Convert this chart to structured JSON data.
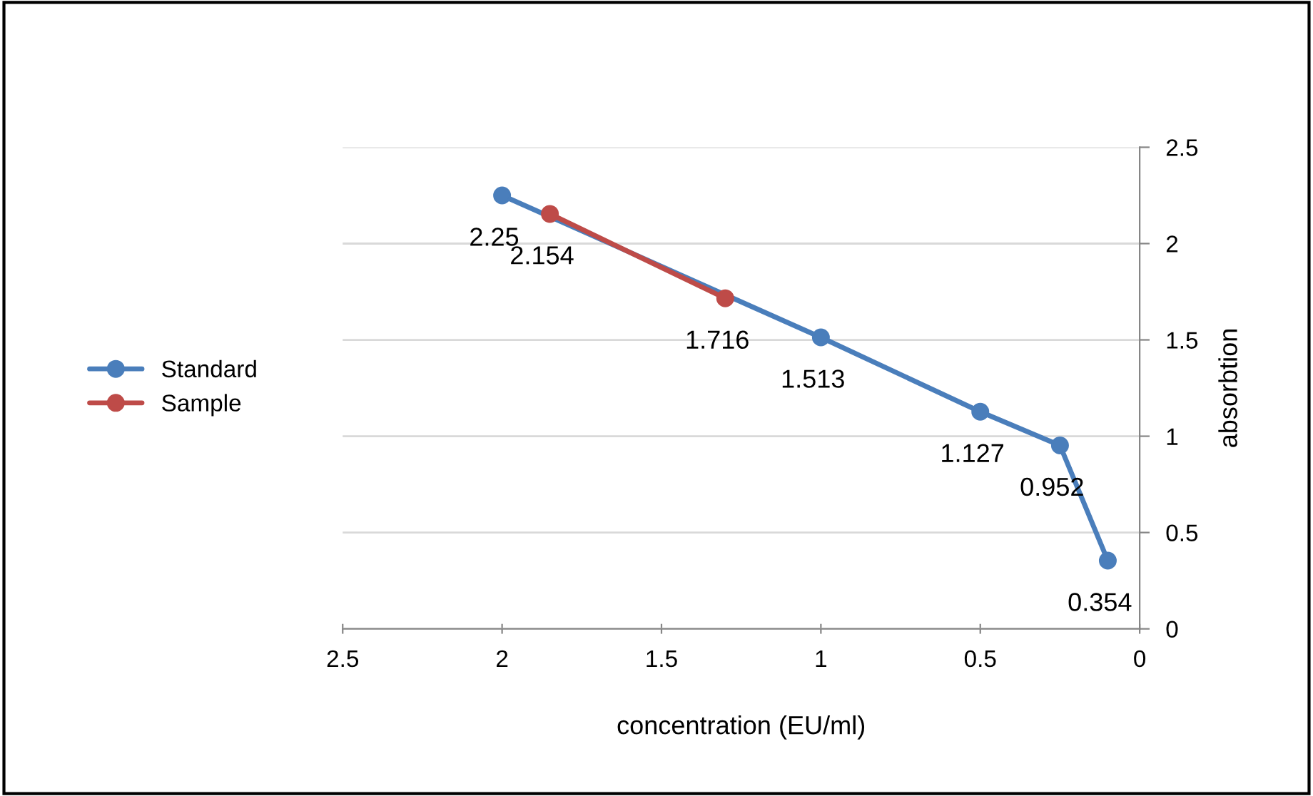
{
  "chart_data": {
    "type": "line",
    "xlabel": "concentration (EU/ml)",
    "ylabel": "absorbtion",
    "xlim": [
      2.5,
      0
    ],
    "xticks": [
      2.5,
      2,
      1.5,
      1,
      0.5,
      0
    ],
    "ylim": [
      0,
      2.5
    ],
    "yticks": [
      0,
      0.5,
      1,
      1.5,
      2,
      2.5
    ],
    "grid": "y",
    "legend": "left",
    "marker": "circle",
    "line_style": "solid",
    "data_labels": true,
    "series": [
      {
        "name": "Standard",
        "color": "#4a7ebb",
        "x": [
          2,
          1,
          0.5,
          0.25,
          0.1
        ],
        "values": [
          2.25,
          1.513,
          1.127,
          0.952,
          0.354
        ]
      },
      {
        "name": "Sample",
        "color": "#be4b48",
        "x": [
          1.85,
          1.3
        ],
        "values": [
          2.154,
          1.716
        ]
      }
    ]
  }
}
